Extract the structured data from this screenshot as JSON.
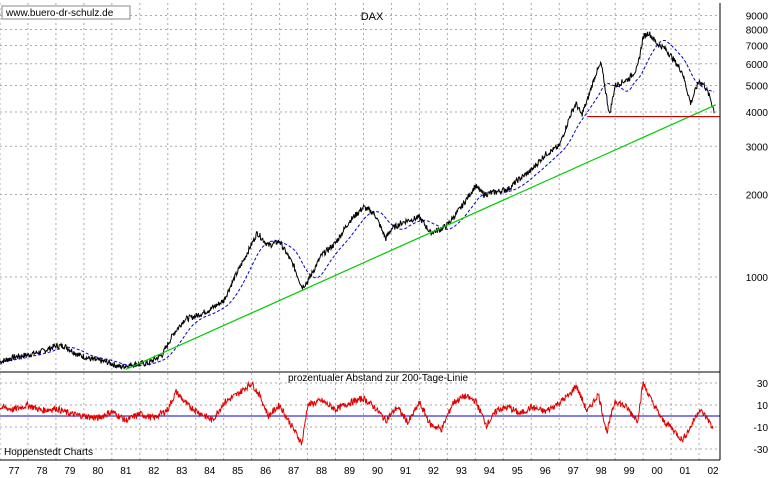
{
  "source_label": "www.buero-dr-schulz.de",
  "footer_label": "Hoppenstedt Charts",
  "colors": {
    "price": "#000000",
    "ma200": "#0000cc",
    "trend_support": "#00cc00",
    "horizontal_support": "#cc0000",
    "oscillator": "#e00000",
    "zero_line": "#0000cc",
    "grid": "#aaaaaa"
  },
  "chart_data": [
    {
      "type": "line",
      "title": "DAX",
      "y_scale": "log",
      "ylim": [
        450,
        10000
      ],
      "xlim": [
        1977.0,
        2002.75
      ],
      "y_ticks": [
        1000,
        2000,
        3000,
        4000,
        5000,
        6000,
        7000,
        8000,
        9000
      ],
      "x_tick_labels": [
        "77",
        "78",
        "79",
        "80",
        "81",
        "82",
        "83",
        "84",
        "85",
        "86",
        "87",
        "88",
        "89",
        "90",
        "91",
        "92",
        "93",
        "94",
        "95",
        "96",
        "97",
        "98",
        "99",
        "00",
        "01",
        "02"
      ],
      "grid": true,
      "series": [
        {
          "values_x": [
            1977.0,
            1977.5,
            1978.0,
            1978.5,
            1979.0,
            1979.3,
            1979.8,
            1980.3,
            1980.8,
            1981.3,
            1981.8,
            1982.3,
            1982.8,
            1983.2,
            1983.6,
            1984.0,
            1984.5,
            1985.0,
            1985.4,
            1985.8,
            1986.2,
            1986.6,
            1987.0,
            1987.5,
            1987.8,
            1988.0,
            1988.5,
            1989.0,
            1989.5,
            1990.0,
            1990.4,
            1990.8,
            1991.0,
            1991.5,
            1992.0,
            1992.4,
            1992.8,
            1993.0,
            1993.5,
            1994.0,
            1994.3,
            1994.8,
            1995.2,
            1995.5,
            1996.0,
            1996.5,
            1997.0,
            1997.4,
            1997.6,
            1997.8,
            1998.0,
            1998.3,
            1998.5,
            1998.8,
            1999.0,
            1999.5,
            1999.8,
            2000.0,
            2000.2,
            2000.5,
            2000.8,
            2001.0,
            2001.4,
            2001.7,
            2001.9,
            2002.0,
            2002.2,
            2002.4,
            2002.55
          ]
        },
        {
          "values_y": [
            490,
            510,
            520,
            535,
            560,
            560,
            520,
            500,
            490,
            470,
            480,
            485,
            520,
            620,
            700,
            720,
            760,
            820,
            1000,
            1200,
            1450,
            1300,
            1350,
            1100,
            920,
            960,
            1200,
            1330,
            1600,
            1800,
            1700,
            1380,
            1500,
            1600,
            1650,
            1450,
            1500,
            1550,
            1800,
            2150,
            2000,
            2050,
            2100,
            2250,
            2450,
            2800,
            3000,
            3900,
            4300,
            3900,
            4400,
            5500,
            6000,
            3900,
            5000,
            5300,
            5800,
            7500,
            7800,
            7100,
            6800,
            6400,
            5600,
            4300,
            4900,
            5200,
            5000,
            4500,
            4000
          ]
        }
      ]
    },
    {
      "type": "line",
      "title": "prozentualer Abstand zur 200-Tage-Linie",
      "ylim": [
        -40,
        40
      ],
      "y_ticks": [
        30,
        10,
        -10,
        -30
      ],
      "x_tick_labels": [
        "77",
        "78",
        "79",
        "80",
        "81",
        "82",
        "83",
        "84",
        "85",
        "86",
        "87",
        "88",
        "89",
        "90",
        "91",
        "92",
        "93",
        "94",
        "95",
        "96",
        "97",
        "98",
        "99",
        "00",
        "01",
        "02"
      ],
      "series": [
        {
          "x": [
            1977.0,
            1977.5,
            1978.0,
            1978.5,
            1979.0,
            1979.5,
            1980.0,
            1980.5,
            1981.0,
            1981.5,
            1982.0,
            1982.5,
            1983.0,
            1983.3,
            1983.7,
            1984.2,
            1984.6,
            1985.0,
            1985.5,
            1986.0,
            1986.3,
            1986.6,
            1987.0,
            1987.5,
            1987.8,
            1988.0,
            1988.5,
            1989.0,
            1989.5,
            1990.0,
            1990.4,
            1990.8,
            1991.2,
            1991.6,
            1992.0,
            1992.4,
            1992.8,
            1993.2,
            1993.6,
            1994.0,
            1994.4,
            1994.8,
            1995.2,
            1995.6,
            1996.0,
            1996.5,
            1997.0,
            1997.4,
            1997.6,
            1998.0,
            1998.4,
            1998.7,
            1999.0,
            1999.4,
            1999.8,
            2000.0,
            2000.3,
            2000.7,
            2001.0,
            2001.4,
            2001.7,
            2002.0,
            2002.3,
            2002.5
          ],
          "y": [
            8,
            6,
            10,
            5,
            7,
            2,
            0,
            -2,
            4,
            -4,
            2,
            -2,
            6,
            22,
            10,
            2,
            -4,
            12,
            20,
            30,
            18,
            0,
            10,
            -12,
            -25,
            10,
            14,
            6,
            12,
            16,
            8,
            -4,
            8,
            -6,
            12,
            -8,
            -12,
            12,
            18,
            14,
            -8,
            6,
            8,
            2,
            8,
            4,
            12,
            20,
            28,
            4,
            20,
            -15,
            14,
            8,
            -4,
            30,
            14,
            -4,
            -10,
            -22,
            -10,
            6,
            -2,
            -12
          ]
        }
      ]
    }
  ]
}
